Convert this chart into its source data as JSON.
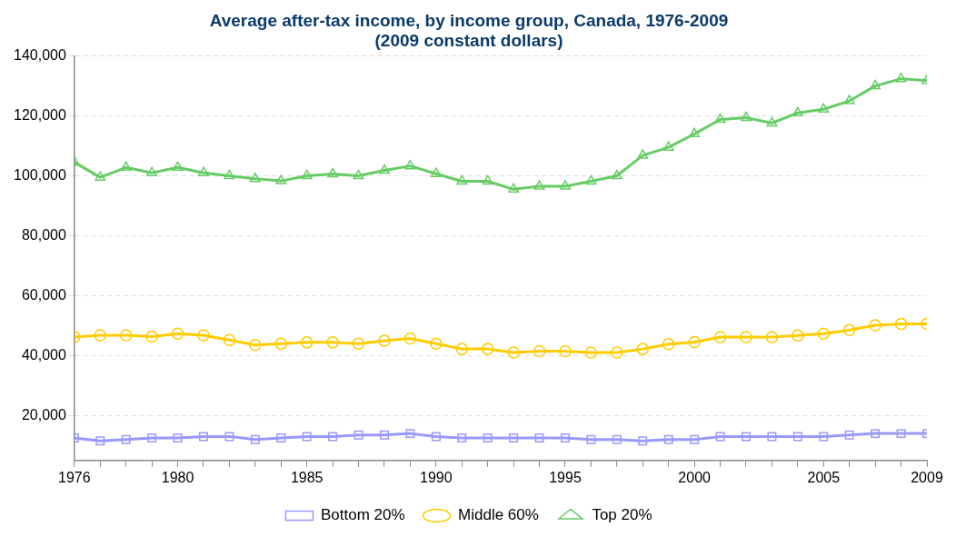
{
  "chart_data": {
    "type": "line",
    "title": "Average after-tax income, by income group, Canada, 1976-2009",
    "subtitle": "(2009 constant dollars)",
    "x": [
      1976,
      1977,
      1978,
      1979,
      1980,
      1981,
      1982,
      1983,
      1984,
      1985,
      1986,
      1987,
      1988,
      1989,
      1990,
      1991,
      1992,
      1993,
      1994,
      1995,
      1996,
      1997,
      1998,
      1999,
      2000,
      2001,
      2002,
      2003,
      2004,
      2005,
      2006,
      2007,
      2008,
      2009
    ],
    "series": [
      {
        "name": "Bottom 20%",
        "color": "#9999ff",
        "marker": "square",
        "values": [
          12500,
          11500,
          12000,
          12500,
          12500,
          13000,
          13000,
          12000,
          12500,
          13000,
          13000,
          13500,
          13500,
          14000,
          13000,
          12500,
          12500,
          12500,
          12500,
          12500,
          12000,
          12000,
          11500,
          12000,
          12000,
          13000,
          13000,
          13000,
          13000,
          13000,
          13500,
          14000,
          14000,
          14000
        ]
      },
      {
        "name": "Middle 60%",
        "color": "#ffcc00",
        "marker": "circle",
        "values": [
          46200,
          46800,
          46800,
          46300,
          47300,
          46800,
          45200,
          43500,
          44000,
          44400,
          44400,
          44000,
          45000,
          45700,
          44000,
          42200,
          42200,
          41000,
          41500,
          41500,
          41000,
          41000,
          42200,
          43800,
          44500,
          46200,
          46200,
          46200,
          46700,
          47300,
          48500,
          50100,
          50600,
          50600
        ]
      },
      {
        "name": "Top 20%",
        "color": "#66cc66",
        "marker": "triangle",
        "values": [
          104500,
          99500,
          102800,
          101000,
          102800,
          101000,
          100000,
          99000,
          98300,
          100000,
          100600,
          100000,
          101800,
          103300,
          100700,
          98200,
          98200,
          95500,
          96500,
          96500,
          98200,
          100000,
          106800,
          109500,
          114000,
          118800,
          119400,
          117600,
          121000,
          122200,
          125000,
          130000,
          132400,
          131800
        ]
      }
    ],
    "xlim": [
      1976,
      2009
    ],
    "xticks": [
      1976,
      {
        "value": 1977,
        "label": null
      },
      {
        "value": 1978,
        "label": null
      },
      {
        "value": 1979,
        "label": null
      },
      1980,
      {
        "value": 1981,
        "label": null
      },
      {
        "value": 1982,
        "label": null
      },
      {
        "value": 1983,
        "label": null
      },
      {
        "value": 1984,
        "label": null
      },
      1985,
      {
        "value": 1986,
        "label": null
      },
      {
        "value": 1987,
        "label": null
      },
      {
        "value": 1988,
        "label": null
      },
      {
        "value": 1989,
        "label": null
      },
      1990,
      {
        "value": 1991,
        "label": null
      },
      {
        "value": 1992,
        "label": null
      },
      {
        "value": 1993,
        "label": null
      },
      {
        "value": 1994,
        "label": null
      },
      1995,
      {
        "value": 1996,
        "label": null
      },
      {
        "value": 1997,
        "label": null
      },
      {
        "value": 1998,
        "label": null
      },
      {
        "value": 1999,
        "label": null
      },
      2000,
      {
        "value": 2001,
        "label": null
      },
      {
        "value": 2002,
        "label": null
      },
      {
        "value": 2003,
        "label": null
      },
      {
        "value": 2004,
        "label": null
      },
      2005,
      {
        "value": 2006,
        "label": null
      },
      {
        "value": 2007,
        "label": null
      },
      {
        "value": 2008,
        "label": null
      },
      2009
    ],
    "ylim": [
      5000,
      140000
    ],
    "yticks": [
      {
        "value": 20000,
        "label": "20,000"
      },
      {
        "value": 40000,
        "label": "40,000"
      },
      {
        "value": 60000,
        "label": "60,000"
      },
      {
        "value": 80000,
        "label": "80,000"
      },
      {
        "value": 100000,
        "label": "100,000"
      },
      {
        "value": 120000,
        "label": "120,000"
      },
      {
        "value": 140000,
        "label": "140,000"
      }
    ],
    "grid": "y",
    "legend": "bottom",
    "line_style": "solid"
  }
}
